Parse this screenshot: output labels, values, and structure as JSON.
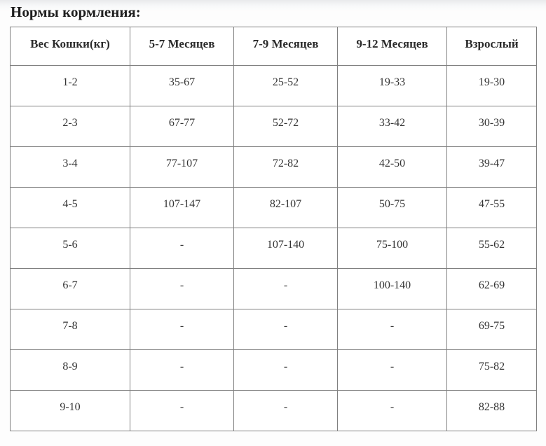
{
  "page": {
    "title": "Нормы кормления:"
  },
  "table": {
    "columns": [
      "Вес Кошки(кг)",
      "5-7 Месяцев",
      "7-9 Месяцев",
      "9-12 Месяцев",
      "Взрослый"
    ],
    "rows": [
      [
        "1-2",
        "35-67",
        "25-52",
        "19-33",
        "19-30"
      ],
      [
        "2-3",
        "67-77",
        "52-72",
        "33-42",
        "30-39"
      ],
      [
        "3-4",
        "77-107",
        "72-82",
        "42-50",
        "39-47"
      ],
      [
        "4-5",
        "107-147",
        "82-107",
        "50-75",
        "47-55"
      ],
      [
        "5-6",
        "-",
        "107-140",
        "75-100",
        "55-62"
      ],
      [
        "6-7",
        "-",
        "-",
        "100-140",
        "62-69"
      ],
      [
        "7-8",
        "-",
        "-",
        "-",
        "69-75"
      ],
      [
        "8-9",
        "-",
        "-",
        "-",
        "75-82"
      ],
      [
        "9-10",
        "-",
        "-",
        "-",
        "82-88"
      ]
    ],
    "empty_marker": "-"
  },
  "colors": {
    "border": "#808080",
    "cell_background": "#ffffff",
    "cell_text": "#343434",
    "header_text": "#2b2b2b",
    "title_text": "#1e1e1e",
    "page_background_top": "#e9eaec",
    "page_background": "#fdfdfd"
  }
}
